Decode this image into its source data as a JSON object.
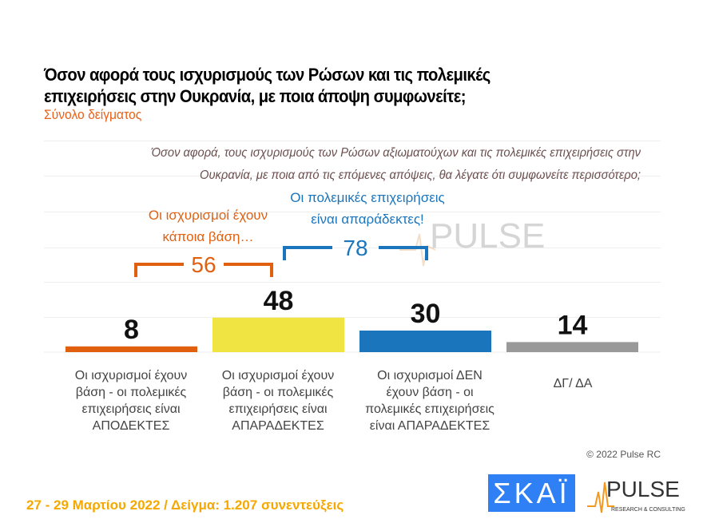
{
  "title": "Όσον αφορά τους ισχυρισμούς των Ρώσων και τις πολεμικές επιχειρήσεις στην Ουκρανία, με ποια άποψη συμφωνείτε;",
  "subtitle": "Σύνολο δείγματος",
  "question": "Όσον αφορά, τους ισχυρισμούς των Ρώσων αξιωματούχων και τις πολεμικές επιχειρήσεις στην Ουκρανία, με ποια από τις επόμενες απόψεις, θα λέγατε ότι συμφωνείτε περισσότερο;",
  "chart_data": {
    "type": "bar",
    "categories": [
      "Οι ισχυρισμοί έχουν βάση - οι πολεμικές επιχειρήσεις είναι ΑΠΟΔΕΚΤΕΣ",
      "Οι ισχυρισμοί έχουν βάση - οι πολεμικές επιχειρήσεις είναι ΑΠΑΡΑΔΕΚΤΕΣ",
      "Οι ισχυρισμοί ΔΕΝ έχουν βάση - οι πολεμικές επιχειρήσεις είναι ΑΠΑΡΑΔΕΚΤΕΣ",
      "ΔΓ/ ΔΑ"
    ],
    "values": [
      8,
      48,
      30,
      14
    ],
    "colors": [
      "#e06010",
      "#f0e442",
      "#1b75bc",
      "#999999"
    ],
    "ylim": [
      0,
      100
    ],
    "annotations": [
      {
        "label": "Οι ισχυρισμοί έχουν κάποια βάση…",
        "value": 56,
        "color": "#e06010"
      },
      {
        "label": "Οι πολεμικές επιχειρήσεις είναι απαράδεκτες!",
        "value": 78,
        "color": "#1b75bc"
      }
    ]
  },
  "copyright": "© 2022 Pulse RC",
  "footer": "27 - 29  Μαρτίου  2022  /  Δείγμα:  1.207 συνεντεύξεις",
  "logos": {
    "skai": "ΣΚΑΪ",
    "pulse": "PULSE",
    "pulse_sub": "RESEARCH & CONSULTING"
  }
}
